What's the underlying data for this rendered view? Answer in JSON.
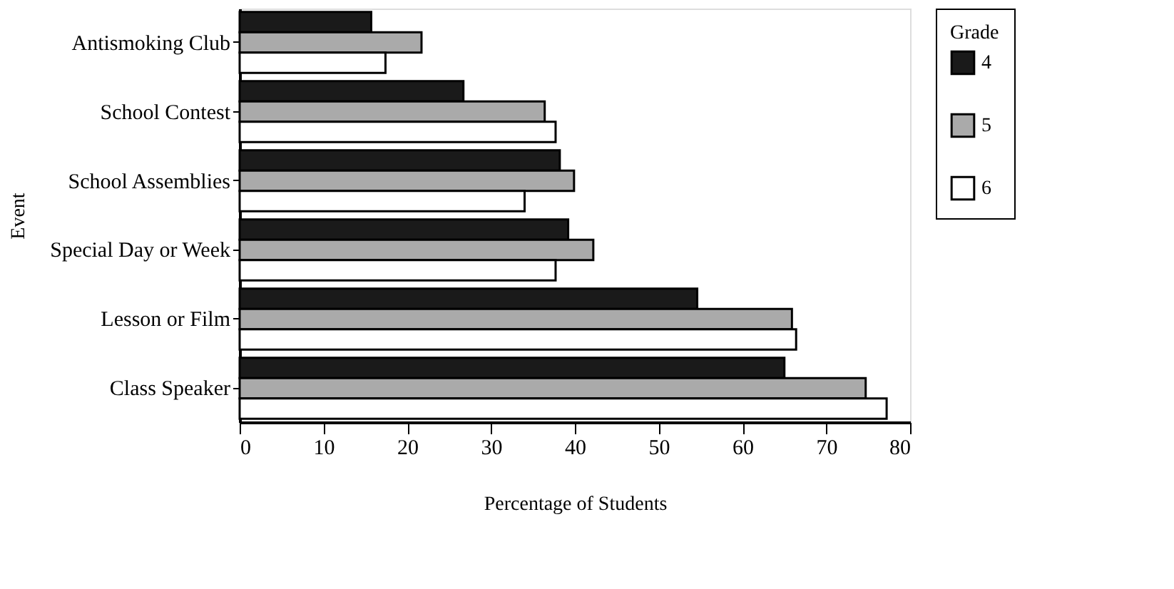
{
  "chart_data": {
    "type": "bar",
    "orientation": "horizontal",
    "xlabel": "Percentage of Students",
    "ylabel": "Event",
    "legend_title": "Grade",
    "legend": "right",
    "grid": false,
    "categories": [
      "Antismoking Club",
      "School Contest",
      "School Assemblies",
      "Special Day or Week",
      "Lesson or Film",
      "Class Speaker"
    ],
    "series": [
      {
        "name": "4",
        "color": "#1a1a1a",
        "values": [
          15.7,
          26.7,
          38.2,
          39.2,
          54.6,
          65
        ]
      },
      {
        "name": "5",
        "color": "#aaaaaa",
        "values": [
          21.7,
          36.4,
          39.9,
          42.2,
          65.9,
          74.7
        ]
      },
      {
        "name": "6",
        "color": "#ffffff",
        "values": [
          17.4,
          37.7,
          34,
          37.7,
          66.4,
          77.2
        ]
      }
    ],
    "xlim": [
      0,
      80
    ],
    "xticks": [
      0,
      10,
      20,
      30,
      40,
      50,
      60,
      70,
      80
    ]
  }
}
